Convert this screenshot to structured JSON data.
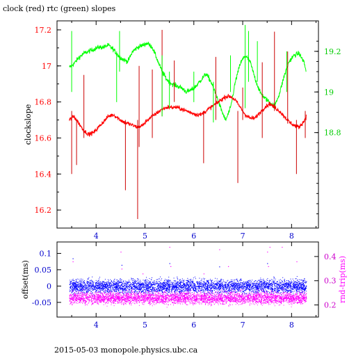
{
  "title": "clock (red) rtc (green) slopes",
  "footer": "2015-05-03 monopole.physics.ubc.ca",
  "colors": {
    "clock": "#ff0000",
    "clock_ticks": "#cc0000",
    "rtc": "#00ff00",
    "rtc_ticks": "#00cc00",
    "offset": "#0000ff",
    "rndtrip": "#ff00ff",
    "axis": "#000000"
  },
  "chart_data": [
    {
      "type": "line",
      "title": "clock (red) rtc (green) slopes",
      "xlabel": "",
      "ylabel": "clockslope",
      "y2label": "",
      "xlim": [
        3.2,
        8.55
      ],
      "ylim": [
        16.1,
        17.25
      ],
      "y2lim": [
        18.33,
        19.35
      ],
      "xticks": [
        "4",
        "5",
        "6",
        "7",
        "8"
      ],
      "yticks": [
        "16.2",
        "16.4",
        "16.6",
        "16.8",
        "17",
        "17.2"
      ],
      "y2ticks": [
        "18.8",
        "19",
        "19.2"
      ],
      "grid": false,
      "series": [
        {
          "name": "clock",
          "axis": "left",
          "color": "#ff0000",
          "x": [
            3.45,
            3.55,
            3.65,
            3.75,
            3.85,
            3.95,
            4.05,
            4.15,
            4.25,
            4.35,
            4.45,
            4.55,
            4.65,
            4.75,
            4.85,
            4.95,
            5.05,
            5.15,
            5.25,
            5.35,
            5.45,
            5.55,
            5.65,
            5.75,
            5.85,
            5.95,
            6.05,
            6.15,
            6.25,
            6.35,
            6.45,
            6.55,
            6.65,
            6.75,
            6.85,
            6.95,
            7.05,
            7.15,
            7.25,
            7.35,
            7.45,
            7.55,
            7.65,
            7.75,
            7.85,
            7.95,
            8.05,
            8.15,
            8.25,
            8.3
          ],
          "y": [
            16.7,
            16.72,
            16.68,
            16.64,
            16.62,
            16.63,
            16.66,
            16.69,
            16.72,
            16.73,
            16.71,
            16.69,
            16.68,
            16.67,
            16.66,
            16.67,
            16.7,
            16.72,
            16.74,
            16.76,
            16.77,
            16.77,
            16.77,
            16.76,
            16.75,
            16.74,
            16.73,
            16.73,
            16.75,
            16.77,
            16.79,
            16.81,
            16.83,
            16.83,
            16.81,
            16.77,
            16.73,
            16.71,
            16.71,
            16.74,
            16.77,
            16.79,
            16.77,
            16.75,
            16.72,
            16.69,
            16.67,
            16.66,
            16.69,
            16.72
          ]
        },
        {
          "name": "rtc",
          "axis": "right",
          "color": "#00ff00",
          "x": [
            3.45,
            3.55,
            3.65,
            3.75,
            3.85,
            3.95,
            4.05,
            4.15,
            4.25,
            4.35,
            4.45,
            4.55,
            4.65,
            4.75,
            4.85,
            4.95,
            5.05,
            5.15,
            5.25,
            5.35,
            5.45,
            5.55,
            5.65,
            5.75,
            5.85,
            5.95,
            6.05,
            6.15,
            6.25,
            6.35,
            6.45,
            6.55,
            6.65,
            6.75,
            6.85,
            6.95,
            7.05,
            7.15,
            7.25,
            7.35,
            7.45,
            7.55,
            7.65,
            7.75,
            7.85,
            7.95,
            8.05,
            8.15,
            8.25,
            8.3
          ],
          "y": [
            19.12,
            19.14,
            19.17,
            19.19,
            19.2,
            19.21,
            19.22,
            19.22,
            19.23,
            19.21,
            19.18,
            19.16,
            19.15,
            19.2,
            19.22,
            19.23,
            19.24,
            19.22,
            19.16,
            19.1,
            19.06,
            19.04,
            19.03,
            19.02,
            19.0,
            19.01,
            19.03,
            19.06,
            19.09,
            19.05,
            18.99,
            18.92,
            18.86,
            18.92,
            19.05,
            19.14,
            19.18,
            19.15,
            19.07,
            19.0,
            18.97,
            18.95,
            18.93,
            18.99,
            19.08,
            19.15,
            19.18,
            19.19,
            19.15,
            19.1
          ]
        }
      ],
      "spikes": [
        {
          "series": "clock",
          "x": 3.5,
          "low": 16.4,
          "high": 16.75
        },
        {
          "series": "clock",
          "x": 3.6,
          "low": 16.45,
          "high": 16.7
        },
        {
          "series": "clock",
          "x": 3.75,
          "low": 16.6,
          "high": 16.95
        },
        {
          "series": "clock",
          "x": 4.6,
          "low": 16.31,
          "high": 16.7
        },
        {
          "series": "clock",
          "x": 4.85,
          "low": 16.15,
          "high": 16.7
        },
        {
          "series": "clock",
          "x": 4.88,
          "low": 16.55,
          "high": 17.0
        },
        {
          "series": "clock",
          "x": 5.15,
          "low": 16.6,
          "high": 16.98
        },
        {
          "series": "clock",
          "x": 5.35,
          "low": 16.72,
          "high": 17.2
        },
        {
          "series": "clock",
          "x": 5.6,
          "low": 16.8,
          "high": 17.03
        },
        {
          "series": "clock",
          "x": 6.2,
          "low": 16.46,
          "high": 16.75
        },
        {
          "series": "clock",
          "x": 6.45,
          "low": 16.7,
          "high": 17.05
        },
        {
          "series": "clock",
          "x": 6.9,
          "low": 16.35,
          "high": 16.75
        },
        {
          "series": "clock",
          "x": 7.0,
          "low": 16.7,
          "high": 16.88
        },
        {
          "series": "clock",
          "x": 7.4,
          "low": 16.6,
          "high": 17.02
        },
        {
          "series": "clock",
          "x": 7.65,
          "low": 16.75,
          "high": 17.19
        },
        {
          "series": "clock",
          "x": 7.92,
          "low": 16.68,
          "high": 17.08
        },
        {
          "series": "clock",
          "x": 8.1,
          "low": 16.4,
          "high": 16.7
        },
        {
          "series": "clock",
          "x": 8.28,
          "low": 16.6,
          "high": 16.75
        },
        {
          "series": "rtc",
          "x": 3.5,
          "low": 19.0,
          "high": 19.3
        },
        {
          "series": "rtc",
          "x": 4.42,
          "low": 18.95,
          "high": 19.2
        },
        {
          "series": "rtc",
          "x": 4.48,
          "low": 19.1,
          "high": 19.3
        },
        {
          "series": "rtc",
          "x": 5.35,
          "low": 18.88,
          "high": 19.18
        },
        {
          "series": "rtc",
          "x": 5.5,
          "low": 18.92,
          "high": 19.1
        },
        {
          "series": "rtc",
          "x": 6.0,
          "low": 18.95,
          "high": 19.1
        },
        {
          "series": "rtc",
          "x": 6.4,
          "low": 18.85,
          "high": 19.05
        },
        {
          "series": "rtc",
          "x": 6.75,
          "low": 19.0,
          "high": 19.18
        },
        {
          "series": "rtc",
          "x": 7.05,
          "low": 18.92,
          "high": 19.33
        },
        {
          "series": "rtc",
          "x": 7.12,
          "low": 19.05,
          "high": 19.3
        },
        {
          "series": "rtc",
          "x": 7.3,
          "low": 19.05,
          "high": 19.25
        },
        {
          "series": "rtc",
          "x": 7.9,
          "low": 19.0,
          "high": 19.2
        }
      ]
    },
    {
      "type": "scatter",
      "title": "",
      "xlabel": "",
      "ylabel": "offset(ms)",
      "y2label": "rnd-trip(ms)",
      "xlim": [
        3.2,
        8.55
      ],
      "ylim": [
        -0.095,
        0.135
      ],
      "y2lim": [
        0.15,
        0.46
      ],
      "xticks": [
        "4",
        "5",
        "6",
        "7",
        "8"
      ],
      "yticks": [
        "-0.05",
        "0",
        "0.05",
        "0.1"
      ],
      "y2ticks": [
        "0.2",
        "0.3",
        "0.4"
      ],
      "grid": false,
      "series": [
        {
          "name": "offset",
          "axis": "left",
          "color": "#0000ff",
          "x_range": [
            3.45,
            8.3
          ],
          "center": 0.0,
          "spread": 0.022
        },
        {
          "name": "rnd-trip",
          "axis": "right",
          "color": "#ff00ff",
          "x_range": [
            3.45,
            8.3
          ],
          "center": 0.23,
          "spread": 0.025
        }
      ],
      "outliers": [
        {
          "series": "rnd-trip",
          "x": 3.52,
          "y": 0.38
        },
        {
          "series": "rnd-trip",
          "x": 4.5,
          "y": 0.42
        },
        {
          "series": "rnd-trip",
          "x": 4.52,
          "y": 0.35
        },
        {
          "series": "rnd-trip",
          "x": 4.95,
          "y": 0.33
        },
        {
          "series": "rnd-trip",
          "x": 5.5,
          "y": 0.44
        },
        {
          "series": "rnd-trip",
          "x": 5.52,
          "y": 0.36
        },
        {
          "series": "rnd-trip",
          "x": 6.2,
          "y": 0.33
        },
        {
          "series": "rnd-trip",
          "x": 6.52,
          "y": 0.43
        },
        {
          "series": "rnd-trip",
          "x": 6.7,
          "y": 0.36
        },
        {
          "series": "rnd-trip",
          "x": 7.5,
          "y": 0.42
        },
        {
          "series": "rnd-trip",
          "x": 7.52,
          "y": 0.36
        },
        {
          "series": "rnd-trip",
          "x": 7.55,
          "y": 0.44
        },
        {
          "series": "rnd-trip",
          "x": 7.8,
          "y": 0.44
        },
        {
          "series": "rnd-trip",
          "x": 8.1,
          "y": 0.38
        },
        {
          "series": "offset",
          "x": 3.52,
          "y": 0.085
        },
        {
          "series": "offset",
          "x": 4.52,
          "y": 0.065
        },
        {
          "series": "offset",
          "x": 5.5,
          "y": 0.07
        },
        {
          "series": "offset",
          "x": 6.52,
          "y": 0.06
        },
        {
          "series": "offset",
          "x": 7.5,
          "y": 0.07
        }
      ]
    }
  ]
}
